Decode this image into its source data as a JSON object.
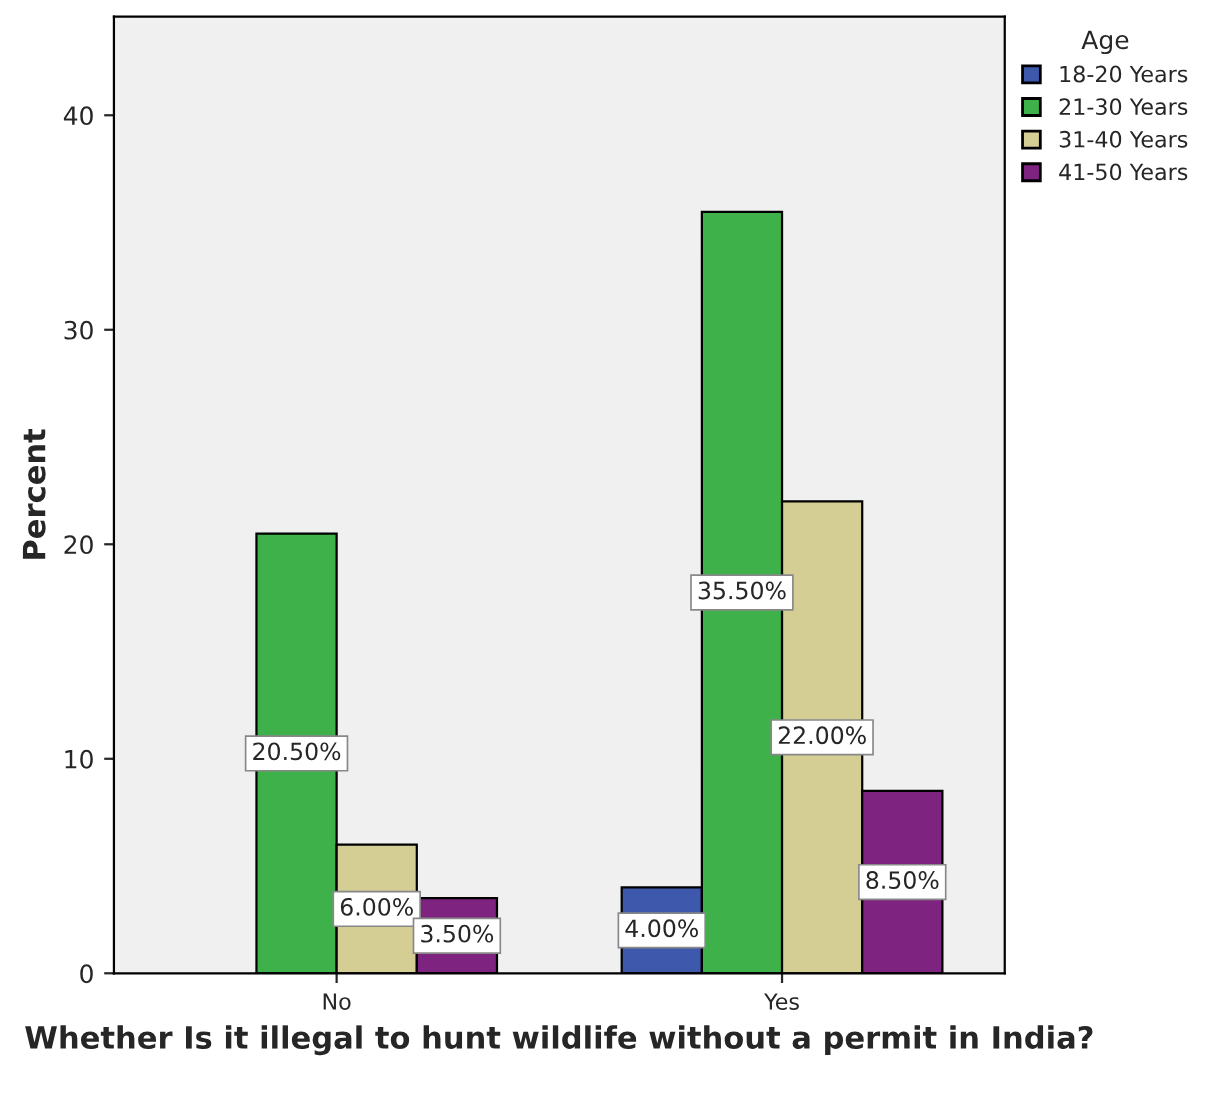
{
  "chart_data": {
    "type": "bar",
    "xlabel": "Whether Is it illegal to hunt wildlife without a permit in India?",
    "ylabel": "Percent",
    "legend_title": "Age",
    "categories": [
      "No",
      "Yes"
    ],
    "series": [
      {
        "name": "18-20 Years",
        "color": "#3e58ac",
        "values": [
          null,
          4.0
        ],
        "value_labels": [
          null,
          "4.00%"
        ]
      },
      {
        "name": "21-30 Years",
        "color": "#3fb14a",
        "values": [
          20.5,
          35.5
        ],
        "value_labels": [
          "20.50%",
          "35.50%"
        ]
      },
      {
        "name": "31-40 Years",
        "color": "#d4cd94",
        "values": [
          6.0,
          22.0
        ],
        "value_labels": [
          "6.00%",
          "22.00%"
        ]
      },
      {
        "name": "41-50 Years",
        "color": "#7f2380",
        "values": [
          3.5,
          8.5
        ],
        "value_labels": [
          "3.50%",
          "8.50%"
        ]
      }
    ],
    "ylim": [
      0,
      44.6
    ],
    "yticks": [
      0,
      10,
      20,
      30,
      40
    ],
    "grid": false,
    "legend": "top right"
  }
}
